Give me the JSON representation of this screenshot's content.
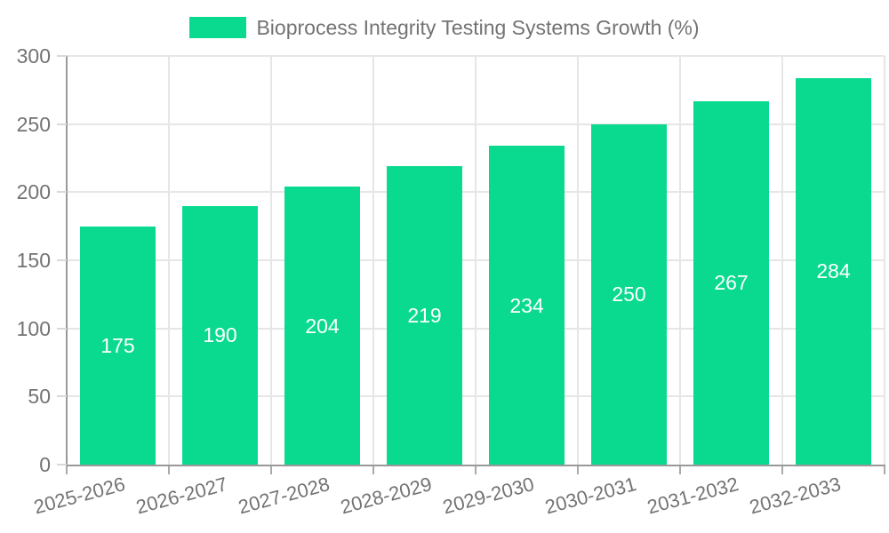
{
  "chart_data": {
    "type": "bar",
    "title": "Bioprocess Integrity Testing Systems Growth (%)",
    "legend_position": "top-center",
    "categories": [
      "2025-2026",
      "2026-2027",
      "2027-2028",
      "2028-2029",
      "2029-2030",
      "2030-2031",
      "2031-2032",
      "2032-2033"
    ],
    "values": [
      175,
      190,
      204,
      219,
      234,
      250,
      267,
      284
    ],
    "value_labels_shown": true,
    "xlabel": "",
    "ylabel": "",
    "ylim": [
      0,
      300
    ],
    "yticks": [
      0,
      50,
      100,
      150,
      200,
      250,
      300
    ],
    "grid": true,
    "x_tick_label_rotation_deg": -15,
    "colors": {
      "bar": "#0ada8f",
      "value_label": "#ffffff",
      "axis_text": "#737373",
      "grid_line": "#e6e6e6",
      "axis_line": "#999999",
      "y_tick": "#d9d9d9",
      "x_tick": "#aaaaaa",
      "background": "#ffffff"
    }
  }
}
